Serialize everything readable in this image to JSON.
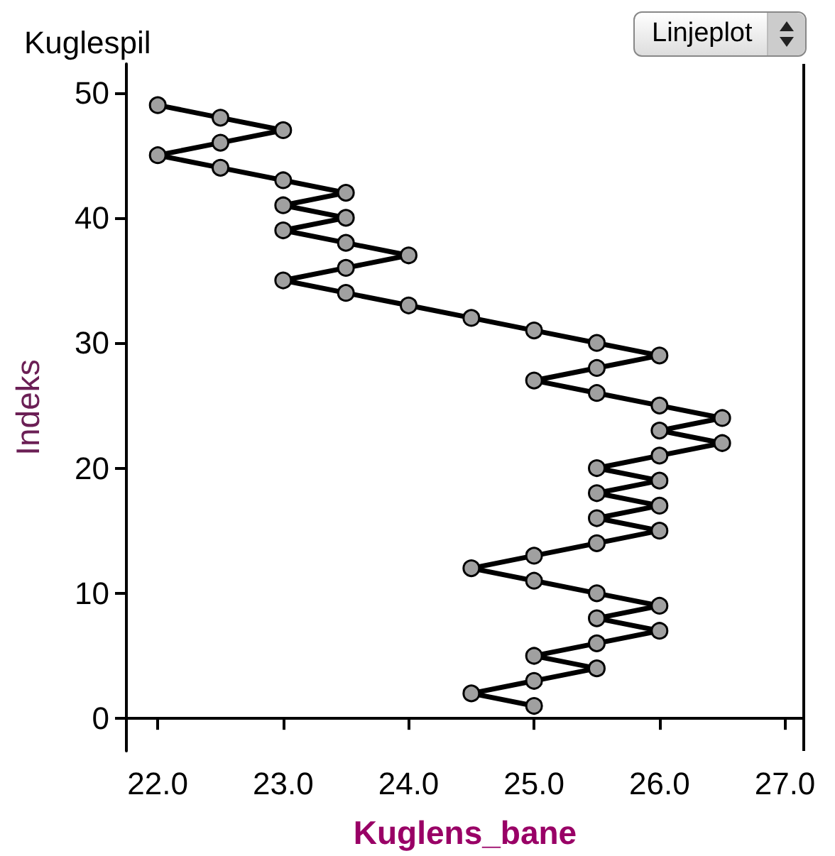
{
  "chart_data": {
    "type": "line",
    "title": "Kuglespil",
    "xlabel": "Kuglens_bane",
    "ylabel": "Indeks",
    "annotations": [
      "Linjeplot"
    ],
    "series": [
      {
        "color": "#000000",
        "x": [
          25.0,
          24.5,
          25.0,
          25.5,
          25.0,
          25.5,
          26.0,
          25.5,
          26.0,
          25.5,
          25.0,
          24.5,
          25.0,
          25.5,
          26.0,
          25.5,
          26.0,
          25.5,
          26.0,
          25.5,
          26.0,
          26.5,
          26.0,
          26.5,
          26.0,
          25.5,
          25.0,
          25.5,
          26.0,
          25.5,
          25.0,
          24.5,
          24.0,
          23.5,
          23.0,
          23.5,
          24.0,
          23.5,
          23.0,
          23.5,
          23.0,
          23.5,
          23.0,
          22.5,
          22.0,
          22.5,
          23.0,
          22.5,
          22.0
        ],
        "values": [
          1,
          2,
          3,
          4,
          5,
          6,
          7,
          8,
          9,
          10,
          11,
          12,
          13,
          14,
          15,
          16,
          17,
          18,
          19,
          20,
          21,
          22,
          23,
          24,
          25,
          26,
          27,
          28,
          29,
          30,
          31,
          32,
          33,
          34,
          35,
          36,
          37,
          38,
          39,
          40,
          41,
          42,
          43,
          44,
          45,
          46,
          47,
          48,
          49
        ]
      }
    ],
    "xlim": [
      21.75,
      27.15
    ],
    "xticks": [
      {
        "value": 22,
        "label": "22.0"
      },
      {
        "value": 23,
        "label": "23.0"
      },
      {
        "value": 24,
        "label": "24.0"
      },
      {
        "value": 25,
        "label": "25.0"
      },
      {
        "value": 26,
        "label": "26.0"
      },
      {
        "value": 27,
        "label": "27.0"
      }
    ],
    "ylim": [
      -2.6,
      52.3
    ],
    "yticks": [
      0,
      10,
      20,
      30,
      40,
      50
    ],
    "grid": false,
    "marker": "circle",
    "line_style": "solid"
  }
}
